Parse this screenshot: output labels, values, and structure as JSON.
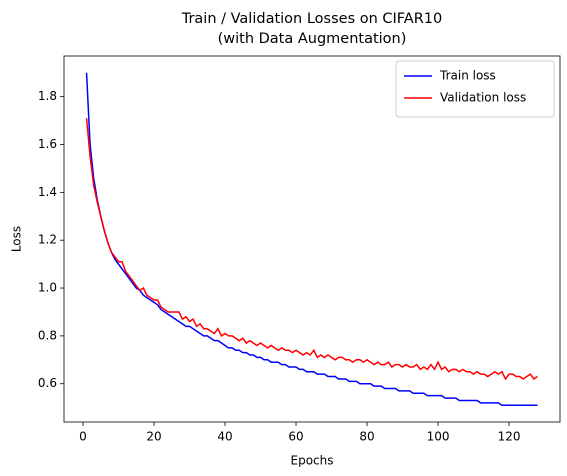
{
  "chart_data": {
    "type": "line",
    "title": [
      "Train / Validation Losses on CIFAR10",
      "(with Data Augmentation)"
    ],
    "xlabel": "Epochs",
    "ylabel": "Loss",
    "x": [
      1,
      2,
      3,
      4,
      5,
      6,
      7,
      8,
      9,
      10,
      11,
      12,
      13,
      14,
      15,
      16,
      17,
      18,
      19,
      20,
      21,
      22,
      23,
      24,
      25,
      26,
      27,
      28,
      29,
      30,
      31,
      32,
      33,
      34,
      35,
      36,
      37,
      38,
      39,
      40,
      41,
      42,
      43,
      44,
      45,
      46,
      47,
      48,
      49,
      50,
      51,
      52,
      53,
      54,
      55,
      56,
      57,
      58,
      59,
      60,
      61,
      62,
      63,
      64,
      65,
      66,
      67,
      68,
      69,
      70,
      71,
      72,
      73,
      74,
      75,
      76,
      77,
      78,
      79,
      80,
      81,
      82,
      83,
      84,
      85,
      86,
      87,
      88,
      89,
      90,
      91,
      92,
      93,
      94,
      95,
      96,
      97,
      98,
      99,
      100,
      101,
      102,
      103,
      104,
      105,
      106,
      107,
      108,
      109,
      110,
      111,
      112,
      113,
      114,
      115,
      116,
      117,
      118,
      119,
      120,
      121,
      122,
      123,
      124,
      125,
      126,
      127,
      128
    ],
    "series": [
      {
        "name": "Train loss",
        "color": "#0000ff",
        "values": [
          1.9,
          1.6,
          1.46,
          1.37,
          1.3,
          1.24,
          1.19,
          1.15,
          1.12,
          1.1,
          1.08,
          1.06,
          1.04,
          1.02,
          1.0,
          0.99,
          0.97,
          0.96,
          0.95,
          0.94,
          0.93,
          0.91,
          0.9,
          0.89,
          0.88,
          0.87,
          0.86,
          0.85,
          0.84,
          0.84,
          0.83,
          0.82,
          0.81,
          0.8,
          0.8,
          0.79,
          0.78,
          0.78,
          0.77,
          0.76,
          0.75,
          0.75,
          0.74,
          0.74,
          0.73,
          0.73,
          0.72,
          0.72,
          0.71,
          0.71,
          0.7,
          0.7,
          0.69,
          0.69,
          0.69,
          0.68,
          0.68,
          0.67,
          0.67,
          0.67,
          0.66,
          0.66,
          0.65,
          0.65,
          0.65,
          0.64,
          0.64,
          0.64,
          0.63,
          0.63,
          0.63,
          0.62,
          0.62,
          0.62,
          0.61,
          0.61,
          0.61,
          0.6,
          0.6,
          0.6,
          0.6,
          0.59,
          0.59,
          0.59,
          0.58,
          0.58,
          0.58,
          0.58,
          0.57,
          0.57,
          0.57,
          0.57,
          0.56,
          0.56,
          0.56,
          0.56,
          0.55,
          0.55,
          0.55,
          0.55,
          0.55,
          0.54,
          0.54,
          0.54,
          0.54,
          0.53,
          0.53,
          0.53,
          0.53,
          0.53,
          0.53,
          0.52,
          0.52,
          0.52,
          0.52,
          0.52,
          0.52,
          0.51,
          0.51,
          0.51,
          0.51,
          0.51,
          0.51,
          0.51,
          0.51,
          0.51,
          0.51,
          0.51
        ]
      },
      {
        "name": "Validation loss",
        "color": "#ff0000",
        "values": [
          1.71,
          1.55,
          1.43,
          1.36,
          1.3,
          1.24,
          1.19,
          1.15,
          1.13,
          1.11,
          1.11,
          1.07,
          1.05,
          1.03,
          1.01,
          0.99,
          1.0,
          0.97,
          0.96,
          0.95,
          0.95,
          0.92,
          0.91,
          0.9,
          0.9,
          0.9,
          0.9,
          0.87,
          0.88,
          0.86,
          0.87,
          0.84,
          0.85,
          0.83,
          0.83,
          0.82,
          0.81,
          0.83,
          0.8,
          0.81,
          0.8,
          0.8,
          0.79,
          0.78,
          0.79,
          0.77,
          0.78,
          0.77,
          0.76,
          0.77,
          0.76,
          0.75,
          0.76,
          0.75,
          0.74,
          0.75,
          0.74,
          0.74,
          0.73,
          0.74,
          0.73,
          0.72,
          0.73,
          0.72,
          0.74,
          0.71,
          0.72,
          0.71,
          0.72,
          0.71,
          0.7,
          0.71,
          0.71,
          0.7,
          0.7,
          0.69,
          0.7,
          0.7,
          0.69,
          0.7,
          0.69,
          0.68,
          0.69,
          0.68,
          0.68,
          0.69,
          0.67,
          0.68,
          0.68,
          0.67,
          0.68,
          0.67,
          0.67,
          0.68,
          0.66,
          0.67,
          0.66,
          0.68,
          0.66,
          0.69,
          0.66,
          0.67,
          0.65,
          0.66,
          0.66,
          0.65,
          0.66,
          0.65,
          0.65,
          0.64,
          0.65,
          0.64,
          0.64,
          0.63,
          0.64,
          0.65,
          0.64,
          0.65,
          0.62,
          0.64,
          0.64,
          0.63,
          0.63,
          0.62,
          0.63,
          0.64,
          0.62,
          0.63
        ]
      }
    ],
    "xlim": [
      -5.35,
      134.35
    ],
    "xticks": [
      0,
      20,
      40,
      60,
      80,
      100,
      120
    ],
    "ylim": [
      0.44,
      1.97
    ],
    "yticks": [
      0.6,
      0.8,
      {
        "value": 1,
        "label": "1.0"
      },
      1.2,
      1.4,
      1.6,
      1.8
    ],
    "legend": "upper right"
  }
}
